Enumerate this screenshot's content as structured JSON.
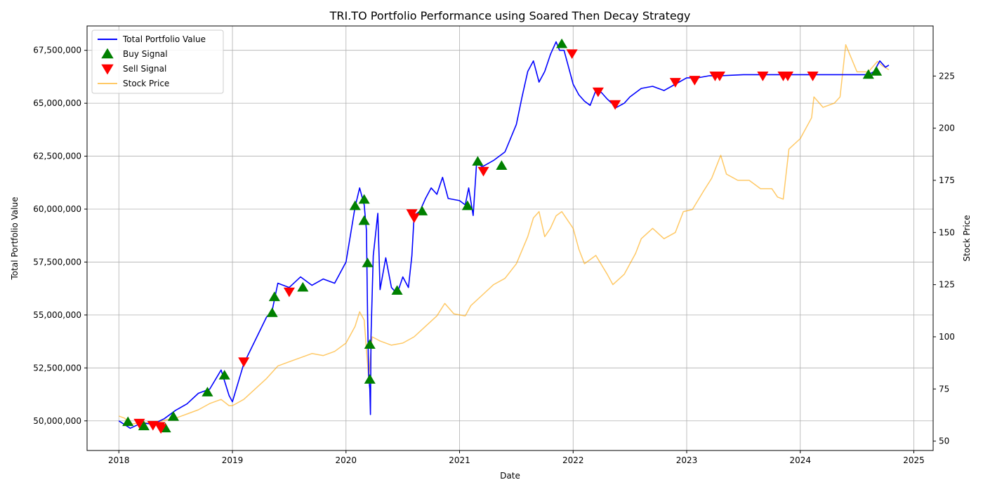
{
  "chart_data": {
    "type": "line",
    "title": "TRI.TO Portfolio Performance using Soared Then Decay Strategy",
    "xlabel": "Date",
    "ylabel": "Total Portfolio Value",
    "y2label": "Stock Price",
    "xlim": [
      2017.72,
      2025.17
    ],
    "ylim": [
      48600000,
      68650000
    ],
    "y2lim": [
      45.5,
      249
    ],
    "x_ticks": [
      2018,
      2019,
      2020,
      2021,
      2022,
      2023,
      2024,
      2025
    ],
    "x_tick_labels": [
      "2018",
      "2019",
      "2020",
      "2021",
      "2022",
      "2023",
      "2024",
      "2025"
    ],
    "y_ticks": [
      50000000,
      52500000,
      55000000,
      57500000,
      60000000,
      62500000,
      65000000,
      67500000
    ],
    "y_tick_labels": [
      "50,000,000",
      "52,500,000",
      "55,000,000",
      "57,500,000",
      "60,000,000",
      "62,500,000",
      "65,000,000",
      "67,500,000"
    ],
    "y2_ticks": [
      50,
      75,
      100,
      125,
      150,
      175,
      200,
      225
    ],
    "y2_tick_labels": [
      "50",
      "75",
      "100",
      "125",
      "150",
      "175",
      "200",
      "225"
    ],
    "grid": true,
    "legend_position": "top-left",
    "colors": {
      "portfolio": "#0000ff",
      "buy": "#008000",
      "sell": "#ff0000",
      "stock": "#ffa500"
    },
    "series": [
      {
        "name": "Total Portfolio Value",
        "axis": "left",
        "x": [
          2018.0,
          2018.1,
          2018.2,
          2018.3,
          2018.4,
          2018.5,
          2018.6,
          2018.7,
          2018.8,
          2018.9,
          2018.97,
          2019.0,
          2019.1,
          2019.2,
          2019.3,
          2019.35,
          2019.4,
          2019.5,
          2019.6,
          2019.7,
          2019.8,
          2019.9,
          2020.0,
          2020.08,
          2020.12,
          2020.16,
          2020.18,
          2020.19,
          2020.2,
          2020.21,
          2020.215,
          2020.22,
          2020.24,
          2020.28,
          2020.3,
          2020.35,
          2020.4,
          2020.45,
          2020.5,
          2020.55,
          2020.58,
          2020.6,
          2020.65,
          2020.7,
          2020.75,
          2020.8,
          2020.85,
          2020.9,
          2021.0,
          2021.05,
          2021.08,
          2021.12,
          2021.15,
          2021.2,
          2021.3,
          2021.4,
          2021.5,
          2021.55,
          2021.6,
          2021.65,
          2021.7,
          2021.75,
          2021.8,
          2021.85,
          2021.88,
          2021.92,
          2022.0,
          2022.05,
          2022.1,
          2022.15,
          2022.2,
          2022.25,
          2022.3,
          2022.38,
          2022.45,
          2022.5,
          2022.6,
          2022.7,
          2022.8,
          2022.9,
          2023.0,
          2023.1,
          2023.2,
          2023.3,
          2023.5,
          2023.7,
          2023.9,
          2024.0,
          2024.2,
          2024.4,
          2024.6,
          2024.65,
          2024.7,
          2024.75,
          2024.78
        ],
        "values": [
          50000000,
          49650000,
          49900000,
          49850000,
          50100000,
          50500000,
          50800000,
          51300000,
          51500000,
          52400000,
          51200000,
          50900000,
          52700000,
          53800000,
          54900000,
          55200000,
          56500000,
          56300000,
          56800000,
          56400000,
          56700000,
          56500000,
          57500000,
          60100000,
          61000000,
          60200000,
          59000000,
          55000000,
          52100000,
          51500000,
          50300000,
          54000000,
          57800000,
          59800000,
          56200000,
          57700000,
          56300000,
          56000000,
          56800000,
          56300000,
          57800000,
          59700000,
          59900000,
          60500000,
          61000000,
          60700000,
          61500000,
          60500000,
          60400000,
          60200000,
          61000000,
          59700000,
          62200000,
          62000000,
          62300000,
          62700000,
          64000000,
          65300000,
          66500000,
          67000000,
          66000000,
          66500000,
          67300000,
          67900000,
          67500000,
          67500000,
          65900000,
          65400000,
          65100000,
          64900000,
          65600000,
          65500000,
          65200000,
          64800000,
          65000000,
          65300000,
          65700000,
          65800000,
          65600000,
          65900000,
          66200000,
          66200000,
          66300000,
          66300000,
          66350000,
          66350000,
          66350000,
          66350000,
          66350000,
          66350000,
          66350000,
          66500000,
          67000000,
          66700000,
          66800000
        ]
      },
      {
        "name": "Stock Price",
        "axis": "right",
        "x": [
          2018.0,
          2018.05,
          2018.1,
          2018.2,
          2018.3,
          2018.4,
          2018.5,
          2018.6,
          2018.7,
          2018.8,
          2018.9,
          2018.97,
          2019.0,
          2019.1,
          2019.2,
          2019.3,
          2019.4,
          2019.5,
          2019.6,
          2019.7,
          2019.8,
          2019.9,
          2020.0,
          2020.08,
          2020.12,
          2020.16,
          2020.2,
          2020.23,
          2020.3,
          2020.4,
          2020.5,
          2020.6,
          2020.7,
          2020.8,
          2020.87,
          2020.95,
          2021.05,
          2021.1,
          2021.2,
          2021.3,
          2021.4,
          2021.5,
          2021.6,
          2021.65,
          2021.7,
          2021.75,
          2021.8,
          2021.85,
          2021.9,
          2022.0,
          2022.05,
          2022.1,
          2022.2,
          2022.3,
          2022.35,
          2022.45,
          2022.55,
          2022.6,
          2022.7,
          2022.8,
          2022.9,
          2022.97,
          2023.05,
          2023.15,
          2023.22,
          2023.3,
          2023.35,
          2023.45,
          2023.55,
          2023.65,
          2023.75,
          2023.8,
          2023.85,
          2023.9,
          2024.0,
          2024.1,
          2024.12,
          2024.2,
          2024.3,
          2024.35,
          2024.4,
          2024.5,
          2024.6,
          2024.68,
          2024.72,
          2024.78
        ],
        "values": [
          62,
          61,
          58,
          59,
          58.5,
          60,
          61,
          63,
          65,
          68,
          70,
          67,
          67,
          70,
          75,
          80,
          86,
          88,
          90,
          92,
          91,
          93,
          97,
          105,
          112,
          108,
          80,
          100,
          98,
          96,
          97,
          100,
          105,
          110,
          116,
          111,
          110,
          115,
          120,
          125,
          128,
          135,
          148,
          157,
          160,
          148,
          152,
          158,
          160,
          152,
          142,
          135,
          139,
          130,
          125,
          130,
          140,
          147,
          152,
          147,
          150,
          160,
          161,
          170,
          176,
          187,
          178,
          175,
          175,
          171,
          171,
          167,
          166,
          190,
          195,
          205,
          215,
          210,
          212,
          215,
          240,
          227,
          227,
          232,
          230,
          228
        ]
      }
    ],
    "markers": [
      {
        "name": "Buy Signal",
        "shape": "triangle-up",
        "points": [
          {
            "x": 2018.08,
            "y": 49950000
          },
          {
            "x": 2018.22,
            "y": 49750000
          },
          {
            "x": 2018.41,
            "y": 49650000
          },
          {
            "x": 2018.48,
            "y": 50200000
          },
          {
            "x": 2018.78,
            "y": 51350000
          },
          {
            "x": 2018.93,
            "y": 52150000
          },
          {
            "x": 2019.35,
            "y": 55100000
          },
          {
            "x": 2019.37,
            "y": 55850000
          },
          {
            "x": 2019.62,
            "y": 56300000
          },
          {
            "x": 2020.08,
            "y": 60150000
          },
          {
            "x": 2020.16,
            "y": 60450000
          },
          {
            "x": 2020.16,
            "y": 59450000
          },
          {
            "x": 2020.19,
            "y": 57450000
          },
          {
            "x": 2020.21,
            "y": 53600000
          },
          {
            "x": 2020.21,
            "y": 51950000
          },
          {
            "x": 2020.45,
            "y": 56150000
          },
          {
            "x": 2020.67,
            "y": 59900000
          },
          {
            "x": 2021.07,
            "y": 60150000
          },
          {
            "x": 2021.16,
            "y": 62250000
          },
          {
            "x": 2021.37,
            "y": 62050000
          },
          {
            "x": 2021.9,
            "y": 67800000
          },
          {
            "x": 2024.6,
            "y": 66350000
          },
          {
            "x": 2024.67,
            "y": 66500000
          }
        ]
      },
      {
        "name": "Sell Signal",
        "shape": "triangle-down",
        "points": [
          {
            "x": 2018.18,
            "y": 49900000
          },
          {
            "x": 2018.3,
            "y": 49800000
          },
          {
            "x": 2018.36,
            "y": 49750000
          },
          {
            "x": 2018.37,
            "y": 49650000
          },
          {
            "x": 2019.1,
            "y": 52800000
          },
          {
            "x": 2019.5,
            "y": 56100000
          },
          {
            "x": 2020.58,
            "y": 59800000
          },
          {
            "x": 2020.6,
            "y": 59600000
          },
          {
            "x": 2021.21,
            "y": 61800000
          },
          {
            "x": 2021.99,
            "y": 67350000
          },
          {
            "x": 2022.22,
            "y": 65550000
          },
          {
            "x": 2022.37,
            "y": 64950000
          },
          {
            "x": 2022.9,
            "y": 66000000
          },
          {
            "x": 2023.07,
            "y": 66100000
          },
          {
            "x": 2023.25,
            "y": 66300000
          },
          {
            "x": 2023.29,
            "y": 66300000
          },
          {
            "x": 2023.67,
            "y": 66300000
          },
          {
            "x": 2023.85,
            "y": 66300000
          },
          {
            "x": 2023.89,
            "y": 66300000
          },
          {
            "x": 2024.11,
            "y": 66300000
          }
        ]
      }
    ],
    "legend": [
      {
        "label": "Total Portfolio Value",
        "kind": "line",
        "color": "#0000ff"
      },
      {
        "label": "Buy Signal",
        "kind": "triangle-up",
        "color": "#008000"
      },
      {
        "label": "Sell Signal",
        "kind": "triangle-down",
        "color": "#ff0000"
      },
      {
        "label": "Stock Price",
        "kind": "line",
        "color": "#ffa500"
      }
    ]
  }
}
